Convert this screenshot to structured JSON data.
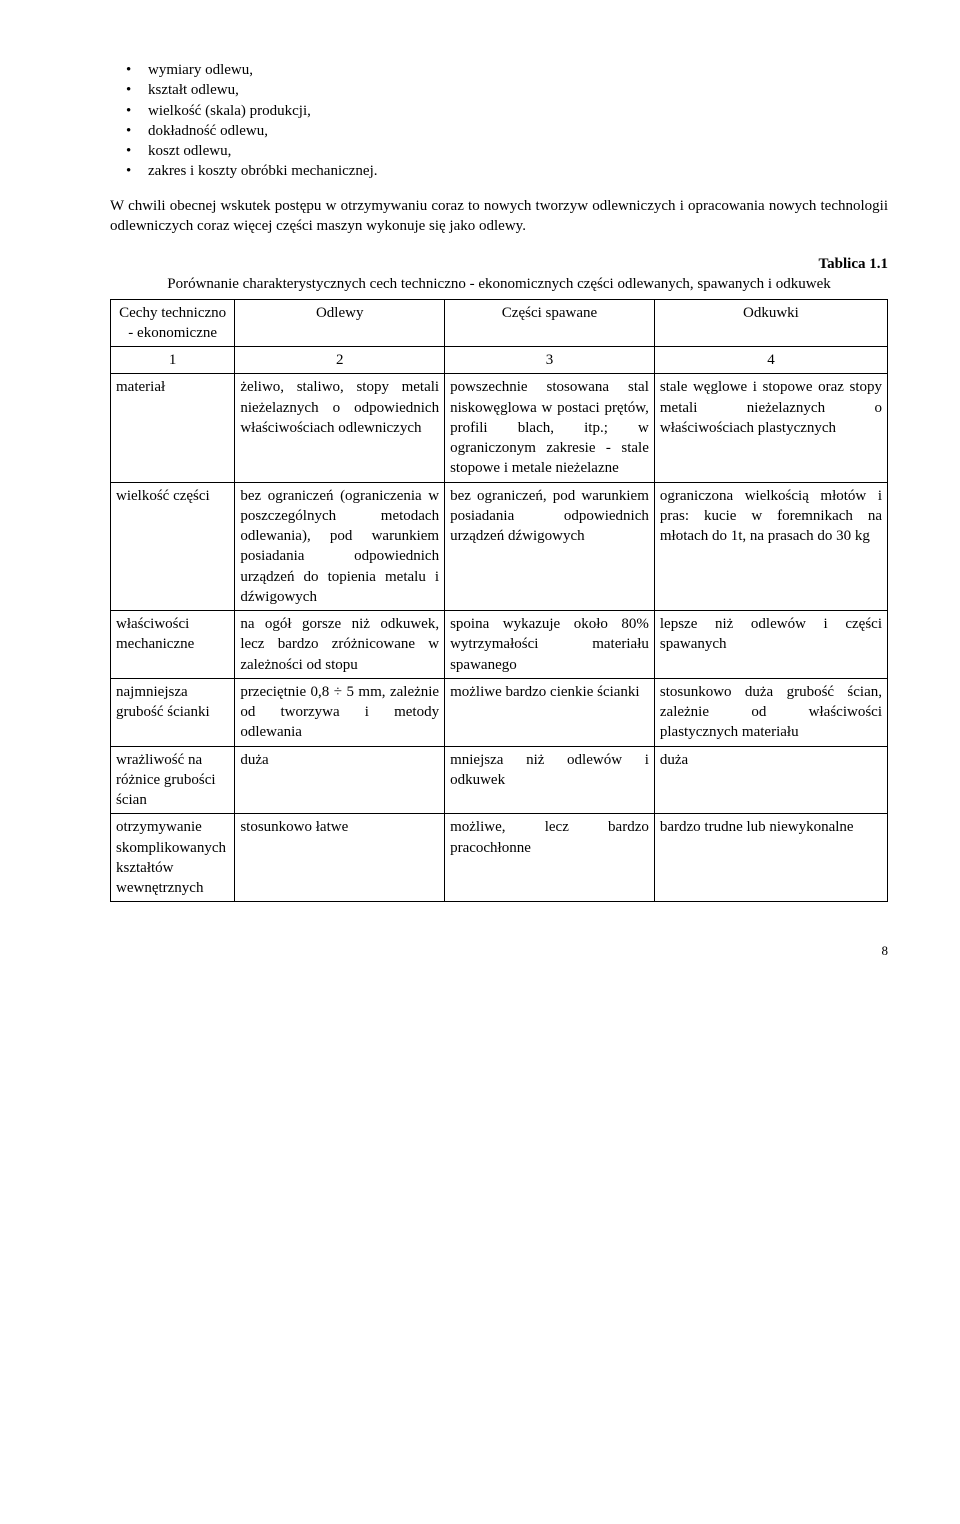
{
  "bullets": [
    "wymiary odlewu,",
    "kształt odlewu,",
    "wielkość (skala) produkcji,",
    "dokładność odlewu,",
    "koszt odlewu,",
    "zakres i koszty obróbki mechanicznej."
  ],
  "paragraph": "W chwili obecnej wskutek postępu w otrzymywaniu coraz to nowych tworzyw odlewniczych i opracowania nowych technologii odlewniczych coraz więcej części maszyn wykonuje się jako odlewy.",
  "table_label": "Tablica 1.1",
  "table_caption": "Porównanie charakterystycznych cech techniczno - ekonomicznych części odlewanych, spawanych i odkuwek",
  "headers": {
    "c1": "Cechy techniczno - ekonomiczne",
    "c2": "Odlewy",
    "c3": "Części spawane",
    "c4": "Odkuwki"
  },
  "numrow": {
    "c1": "1",
    "c2": "2",
    "c3": "3",
    "c4": "4"
  },
  "rows": [
    {
      "c1": "materiał",
      "c2": "żeliwo, staliwo, stopy metali nieżelaznych o odpowiednich właściwościach odlewniczych",
      "c3": "powszechnie stosowana stal niskowęglowa w postaci prętów, profili blach, itp.; w ograniczonym zakresie - stale stopowe i metale nieżelazne",
      "c4": "stale węglowe i stopowe oraz stopy metali nieżelaznych o właściwościach plastycznych"
    },
    {
      "c1": "wielkość części",
      "c2": "bez ograniczeń (ograniczenia w poszczególnych metodach odlewania), pod warunkiem posiadania odpowiednich urządzeń do topienia metalu i dźwigowych",
      "c3": "bez ograniczeń, pod warunkiem posiadania odpowiednich urządzeń dźwigowych",
      "c4": "ograniczona wielkością młotów i pras: kucie w foremnikach na młotach do 1t, na prasach do 30 kg"
    },
    {
      "c1": "właściwości mechaniczne",
      "c2": "na ogół gorsze niż odkuwek, lecz bardzo zróżnicowane w zależności od stopu",
      "c3": "spoina wykazuje około 80% wytrzymałości materiału spawanego",
      "c4": "lepsze niż odlewów i części spawanych"
    },
    {
      "c1": "najmniejsza grubość ścianki",
      "c2": "przeciętnie 0,8 ÷ 5 mm, zależnie od tworzywa i metody odlewania",
      "c3": "możliwe bardzo cienkie ścianki",
      "c4": "stosunkowo duża grubość ścian, zależnie od właściwości plastycznych materiału"
    },
    {
      "c1": "wrażliwość na różnice grubości ścian",
      "c2": "duża",
      "c3": "mniejsza niż odlewów i odkuwek",
      "c4": "duża"
    },
    {
      "c1": "otrzymywanie skomplikowanych kształtów wewnętrznych",
      "c2": "stosunkowo łatwe",
      "c3": "możliwe, lecz bardzo pracochłonne",
      "c4": "bardzo trudne lub niewykonalne"
    }
  ],
  "page_number": "8"
}
